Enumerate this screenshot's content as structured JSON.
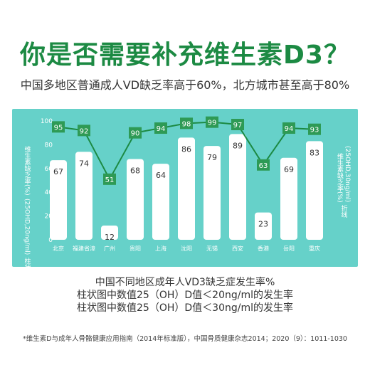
{
  "title": "你是否需要补充维生素D3？",
  "subtitle": "中国多地区普通成人VD缺乏率高于60%，北方城市甚至高于80%",
  "chart_data": {
    "type": "bar",
    "categories": [
      "北京",
      "福建省漳",
      "广州",
      "贵阳",
      "上海",
      "沈阳",
      "无锡",
      "西安",
      "香港",
      "岳阳",
      "重庆"
    ],
    "series": [
      {
        "name": "柱状图",
        "values": [
          67,
          74,
          12,
          68,
          64,
          86,
          79,
          89,
          23,
          69,
          83
        ]
      },
      {
        "name": "折线",
        "values": [
          95,
          92,
          51,
          90,
          94,
          98,
          99,
          97,
          63,
          94,
          93
        ]
      }
    ],
    "ylim": [
      0,
      100
    ],
    "yticks": [
      "0",
      "20",
      "40",
      "60",
      "80",
      "100"
    ],
    "left_axis_label": "维生素缺乏率(%)",
    "left_axis_unit": "(25OHD,20ng/ml)",
    "left_axis_tag": "柱状图",
    "right_axis_label": "维生素缺乏率(%)",
    "right_axis_unit": "(25OHD,30ng/ml)",
    "right_axis_tag": "折线",
    "colors": {
      "panel": "#66d1c9",
      "bar": "#ffffff",
      "line": "#1c8a43",
      "marker": "#2e9a55",
      "marker_text": "#ffffff",
      "axis_text": "#ffffff"
    }
  },
  "captions": [
    "中国不同地区成年人VD3缺乏症发生率%",
    "柱状图中数值25（OH）D值＜20ng/ml的发生率",
    "柱状图中数值25（OH）D值＜30ng/ml的发生率"
  ],
  "footnote": "*维生素D与成年人骨骼健康应用指南（2014年标准版），中国骨质健康杂志2014；2020（9）：1011-1030"
}
